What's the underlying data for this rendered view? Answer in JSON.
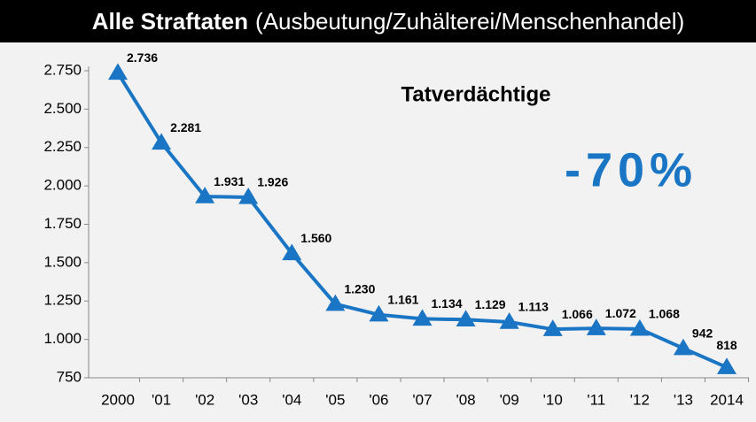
{
  "chart_data": {
    "type": "line",
    "title": "Alle Straftaten",
    "subtitle": "(Ausbeutung/Zuhälterei/Menschenhandel)",
    "annotations": [
      "Tatverdächtige",
      "-70%"
    ],
    "categories": [
      "2000",
      "'01",
      "'02",
      "'03",
      "'04",
      "'05",
      "'06",
      "'07",
      "'08",
      "'09",
      "'10",
      "'11",
      "'12",
      "'13",
      "2014"
    ],
    "series": [
      {
        "name": "Tatverdächtige",
        "color": "#1a75c4",
        "values": [
          2736,
          2281,
          1931,
          1926,
          1560,
          1230,
          1161,
          1134,
          1129,
          1113,
          1066,
          1072,
          1068,
          942,
          818
        ],
        "value_labels": [
          "2.736",
          "2.281",
          "1.931",
          "1.926",
          "1.560",
          "1.230",
          "1.161",
          "1.134",
          "1.129",
          "1.113",
          "1.066",
          "1.072",
          "1.068",
          "942",
          "818"
        ]
      }
    ],
    "ylim": [
      750,
      2750
    ],
    "yticks": [
      {
        "value": 750,
        "label": "750"
      },
      {
        "value": 1000,
        "label": "1.000"
      },
      {
        "value": 1250,
        "label": "1.250"
      },
      {
        "value": 1500,
        "label": "1.500"
      },
      {
        "value": 1750,
        "label": "1.750"
      },
      {
        "value": 2000,
        "label": "2.000"
      },
      {
        "value": 2250,
        "label": "2.250"
      },
      {
        "value": 2500,
        "label": "2.500"
      },
      {
        "value": 2750,
        "label": "2.750"
      }
    ],
    "grid": false
  }
}
